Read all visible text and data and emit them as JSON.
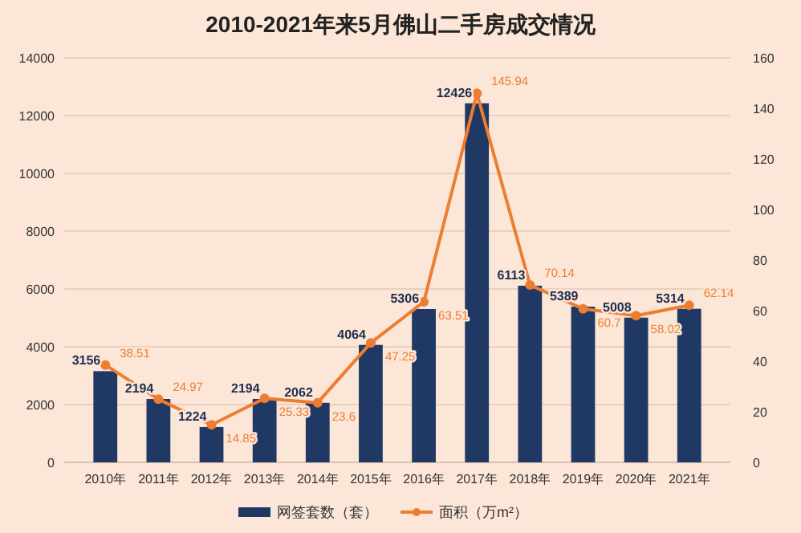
{
  "chart_data": {
    "type": "bar",
    "title": "2010-2021年来5月佛山二手房成交情况",
    "categories": [
      "2010年",
      "2011年",
      "2012年",
      "2013年",
      "2014年",
      "2015年",
      "2016年",
      "2017年",
      "2018年",
      "2019年",
      "2020年",
      "2021年"
    ],
    "series": [
      {
        "name": "网签套数（套）",
        "type": "bar",
        "color": "#1f3864",
        "values": [
          3156,
          2194,
          1224,
          2194,
          2062,
          4064,
          5306,
          12426,
          6113,
          5389,
          5008,
          5314
        ]
      },
      {
        "name": "面积（万m²）",
        "type": "line",
        "axis": "y2",
        "color": "#ed7d31",
        "values": [
          38.51,
          24.97,
          14.85,
          25.33,
          23.6,
          47.25,
          63.51,
          145.94,
          70.14,
          60.7,
          58.02,
          62.14
        ]
      }
    ],
    "data_labels": true,
    "marker": "circle",
    "ylim": [
      0,
      14000
    ],
    "yticks": [
      0,
      2000,
      4000,
      6000,
      8000,
      10000,
      12000,
      14000
    ],
    "y2lim": [
      0,
      160
    ],
    "y2ticks": [
      0,
      20,
      40,
      60,
      80,
      100,
      120,
      140,
      160
    ],
    "grid": "y",
    "legend": "bottom"
  }
}
